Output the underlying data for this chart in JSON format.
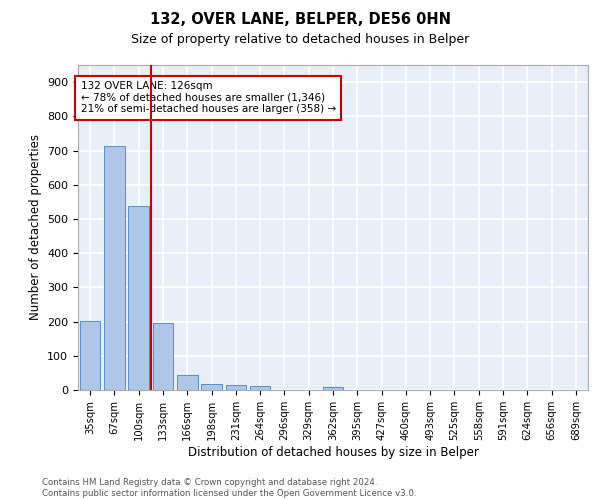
{
  "title1": "132, OVER LANE, BELPER, DE56 0HN",
  "title2": "Size of property relative to detached houses in Belper",
  "xlabel": "Distribution of detached houses by size in Belper",
  "ylabel": "Number of detached properties",
  "categories": [
    "35sqm",
    "67sqm",
    "100sqm",
    "133sqm",
    "166sqm",
    "198sqm",
    "231sqm",
    "264sqm",
    "296sqm",
    "329sqm",
    "362sqm",
    "395sqm",
    "427sqm",
    "460sqm",
    "493sqm",
    "525sqm",
    "558sqm",
    "591sqm",
    "624sqm",
    "656sqm",
    "689sqm"
  ],
  "values": [
    203,
    714,
    537,
    197,
    43,
    19,
    15,
    11,
    0,
    0,
    9,
    0,
    0,
    0,
    0,
    0,
    0,
    0,
    0,
    0,
    0
  ],
  "bar_color": "#aec6e8",
  "bar_edge_color": "#5a8fc3",
  "bg_color": "#e8eef8",
  "grid_color": "#ffffff",
  "vline_color": "#cc0000",
  "vline_x_index": 2.5,
  "annotation_text": "132 OVER LANE: 126sqm\n← 78% of detached houses are smaller (1,346)\n21% of semi-detached houses are larger (358) →",
  "annotation_box_color": "#ffffff",
  "annotation_box_edge": "#cc0000",
  "footer": "Contains HM Land Registry data © Crown copyright and database right 2024.\nContains public sector information licensed under the Open Government Licence v3.0.",
  "ylim": [
    0,
    950
  ],
  "yticks": [
    0,
    100,
    200,
    300,
    400,
    500,
    600,
    700,
    800,
    900
  ]
}
